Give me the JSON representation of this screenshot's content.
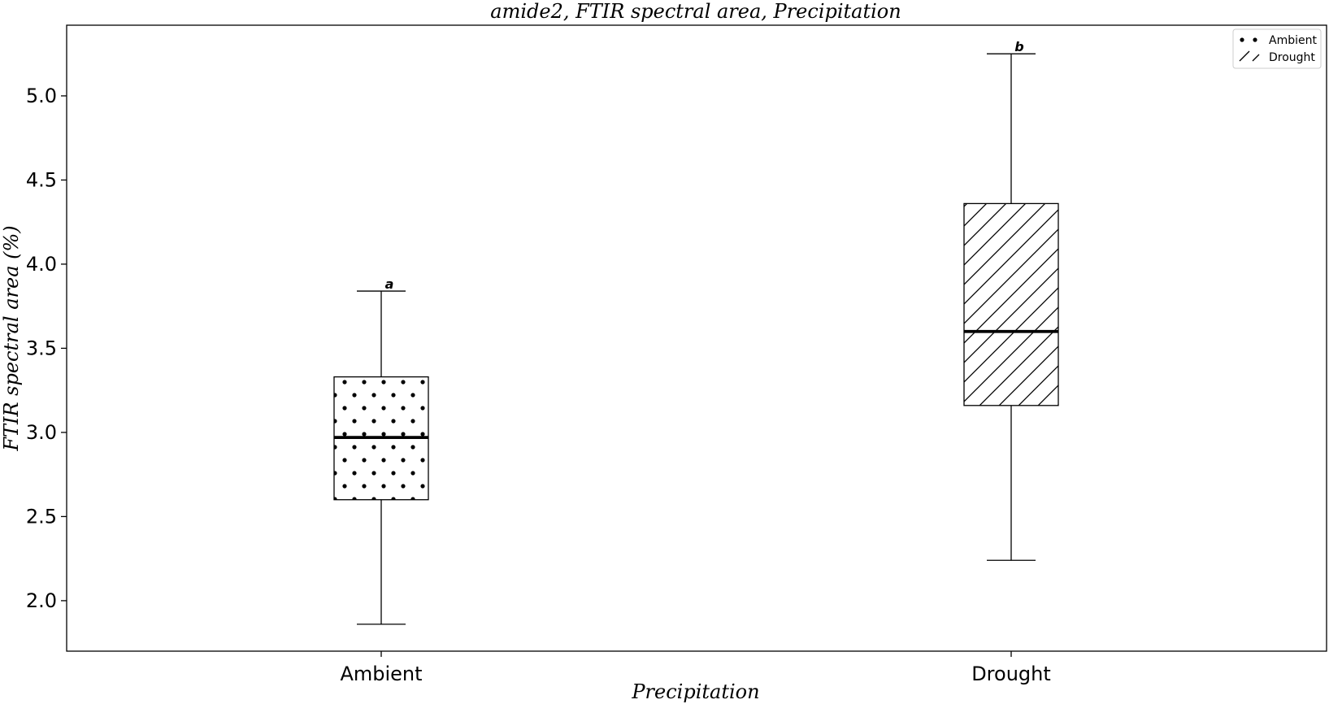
{
  "chart_data": {
    "type": "box",
    "title": "amide2, FTIR spectral area, Precipitation",
    "xlabel": "Precipitation",
    "ylabel": "FTIR spectral area (%)",
    "categories": [
      "Ambient",
      "Drought"
    ],
    "ylim": [
      1.7,
      5.42
    ],
    "yticks": [
      "2.0",
      "2.5",
      "3.0",
      "3.5",
      "4.0",
      "4.5",
      "5.0"
    ],
    "grid": false,
    "legend_position": "top-right",
    "legend": [
      {
        "label": "Ambient",
        "pattern": "dots"
      },
      {
        "label": "Drought",
        "pattern": "diagonal-hatch"
      }
    ],
    "boxes": [
      {
        "category": "Ambient",
        "whisker_low": 1.86,
        "q1": 2.6,
        "median": 2.97,
        "q3": 3.33,
        "whisker_high": 3.84,
        "letter": "a",
        "pattern": "dots"
      },
      {
        "category": "Drought",
        "whisker_low": 2.24,
        "q1": 3.16,
        "median": 3.6,
        "q3": 4.36,
        "whisker_high": 5.25,
        "letter": "b",
        "pattern": "diagonal-hatch"
      }
    ],
    "colors": {
      "box_fill": "#ffffff",
      "line": "#000000"
    }
  }
}
